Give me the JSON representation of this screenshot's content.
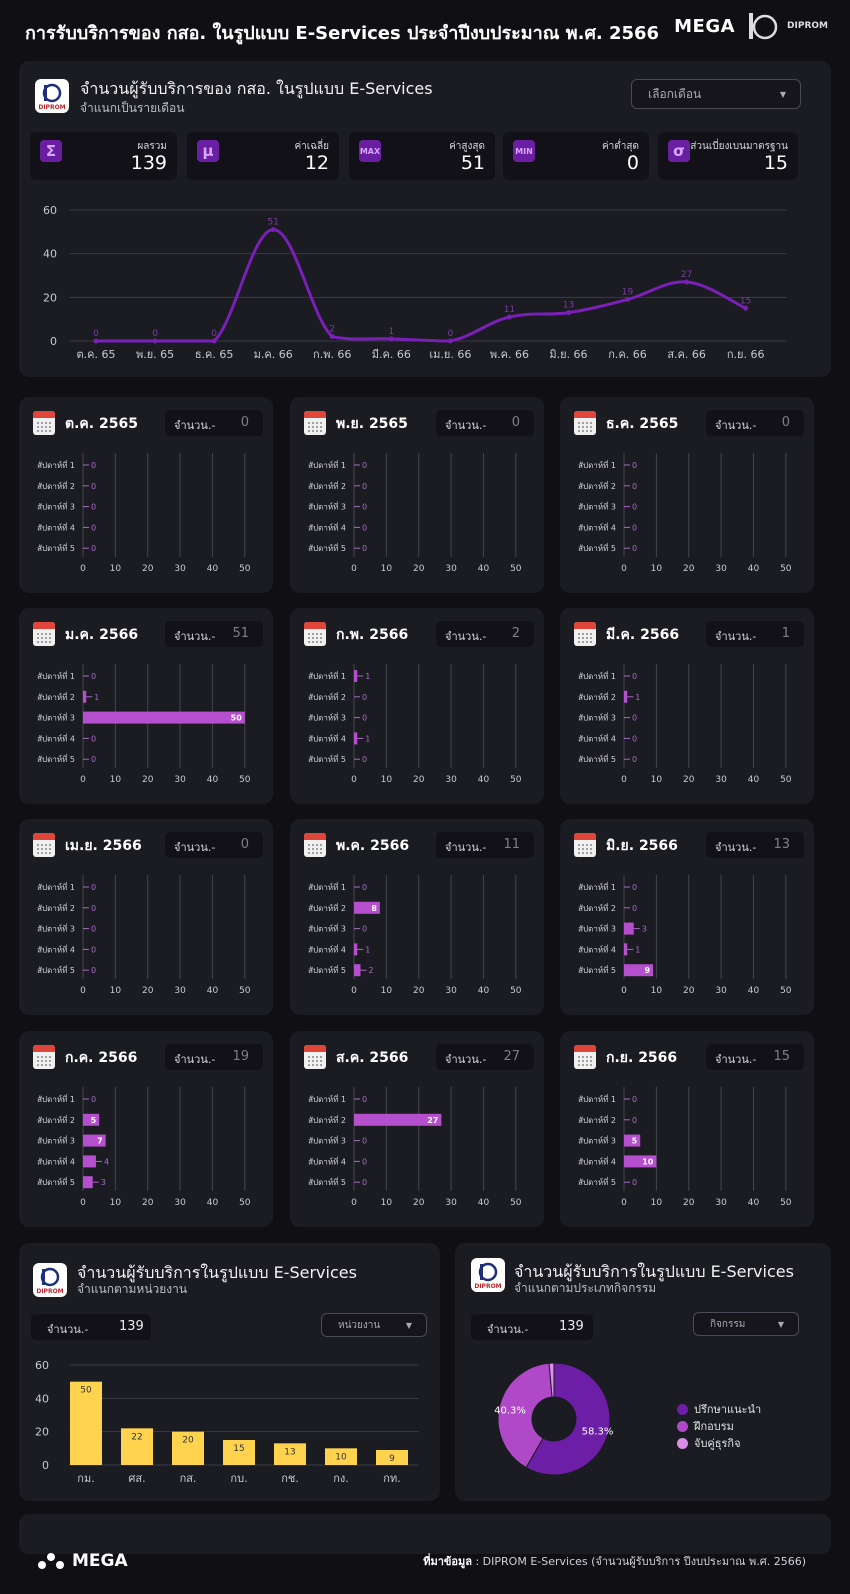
{
  "header": {
    "title": "การรับบริการของ กสอ. ในรูปแบบ E-Services ประจำปีงบประมาณ พ.ศ. 2566",
    "brand_mega": "MEGA",
    "brand_diprom": "DIPROM"
  },
  "logo_text": "DIPROM",
  "monthly": {
    "title": "จำนวนผู้รับบริการของ กสอ. ในรูปแบบ E-Services",
    "subtitle": "จำแนกเป็นรายเดือน",
    "select_placeholder": "เลือกเดือน",
    "stats": [
      {
        "icon": "sigma-icon",
        "glyph": "Σ",
        "label": "ผลรวม",
        "value": "139"
      },
      {
        "icon": "mu-icon",
        "glyph": "μ",
        "label": "ค่าเฉลี่ย",
        "value": "12"
      },
      {
        "icon": "max-icon",
        "glyph": "MAX",
        "label": "ค่าสูงสุด",
        "value": "51"
      },
      {
        "icon": "min-icon",
        "glyph": "MIN",
        "label": "ค่าต่ำสุด",
        "value": "0"
      },
      {
        "icon": "sigma-lower-icon",
        "glyph": "σ",
        "label": "ส่วนเบี่ยงเบนมาตรฐาน",
        "value": "15"
      }
    ]
  },
  "chart_data": [
    {
      "type": "line",
      "categories": [
        "ต.ค. 65",
        "พ.ย. 65",
        "ธ.ค. 65",
        "ม.ค. 66",
        "ก.พ. 66",
        "มี.ค. 66",
        "เม.ย. 66",
        "พ.ค. 66",
        "มิ.ย. 66",
        "ก.ค. 66",
        "ส.ค. 66",
        "ก.ย. 66"
      ],
      "values": [
        0,
        0,
        0,
        51,
        2,
        1,
        0,
        11,
        13,
        19,
        27,
        15
      ],
      "y_ticks": [
        0,
        20,
        40,
        60
      ],
      "ylim": [
        0,
        60
      ],
      "grid": true,
      "color": "#7a1fb8"
    },
    {
      "type": "bar",
      "orientation": "horizontal",
      "categories": [
        "สัปดาห์ที่ 1",
        "สัปดาห์ที่ 2",
        "สัปดาห์ที่ 3",
        "สัปดาห์ที่ 4",
        "สัปดาห์ที่ 5"
      ],
      "x_ticks": [
        0,
        10,
        20,
        30,
        40,
        50
      ],
      "xlim": [
        0,
        55
      ],
      "color": "#b54fce",
      "months": [
        {
          "title": "ต.ค. 2565",
          "count_label": "จำนวน.-",
          "total": "0",
          "values": [
            0,
            0,
            0,
            0,
            0
          ]
        },
        {
          "title": "พ.ย. 2565",
          "count_label": "จำนวน.-",
          "total": "0",
          "values": [
            0,
            0,
            0,
            0,
            0
          ]
        },
        {
          "title": "ธ.ค. 2565",
          "count_label": "จำนวน.-",
          "total": "0",
          "values": [
            0,
            0,
            0,
            0,
            0
          ]
        },
        {
          "title": "ม.ค. 2566",
          "count_label": "จำนวน.-",
          "total": "51",
          "values": [
            0,
            1,
            50,
            0,
            0
          ]
        },
        {
          "title": "ก.พ. 2566",
          "count_label": "จำนวน.-",
          "total": "2",
          "values": [
            1,
            0,
            0,
            1,
            0
          ]
        },
        {
          "title": "มี.ค. 2566",
          "count_label": "จำนวน.-",
          "total": "1",
          "values": [
            0,
            1,
            0,
            0,
            0
          ]
        },
        {
          "title": "เม.ย. 2566",
          "count_label": "จำนวน.-",
          "total": "0",
          "values": [
            0,
            0,
            0,
            0,
            0
          ]
        },
        {
          "title": "พ.ค. 2566",
          "count_label": "จำนวน.-",
          "total": "11",
          "values": [
            0,
            8,
            0,
            1,
            2
          ]
        },
        {
          "title": "มิ.ย. 2566",
          "count_label": "จำนวน.-",
          "total": "13",
          "values": [
            0,
            0,
            3,
            1,
            9
          ]
        },
        {
          "title": "ก.ค. 2566",
          "count_label": "จำนวน.-",
          "total": "19",
          "values": [
            0,
            5,
            7,
            4,
            3
          ]
        },
        {
          "title": "ส.ค. 2566",
          "count_label": "จำนวน.-",
          "total": "27",
          "values": [
            0,
            27,
            0,
            0,
            0
          ]
        },
        {
          "title": "ก.ย. 2566",
          "count_label": "จำนวน.-",
          "total": "15",
          "values": [
            0,
            0,
            5,
            10,
            0
          ]
        }
      ]
    },
    {
      "type": "bar",
      "categories": [
        "กม.",
        "ศส.",
        "กส.",
        "กบ.",
        "กช.",
        "กง.",
        "กท."
      ],
      "values": [
        50,
        22,
        20,
        15,
        13,
        10,
        9
      ],
      "y_ticks": [
        0,
        20,
        40,
        60
      ],
      "ylim": [
        0,
        60
      ],
      "color": "#ffd34d"
    },
    {
      "type": "pie",
      "labels": [
        "ปรึกษาแนะนำ",
        "ฝึกอบรม",
        "จับคู่ธุรกิจ"
      ],
      "values": [
        58.3,
        40.3,
        1.4
      ],
      "data_labels": [
        "58.3%",
        "40.3%",
        ""
      ],
      "colors": [
        "#6c1ea6",
        "#b049c8",
        "#d98ee8"
      ],
      "legend": "right"
    }
  ],
  "by_unit": {
    "title": "จำนวนผู้รับบริการในรูปแบบ E-Services",
    "subtitle": "จำแนกตามหน่วยงาน",
    "count_label": "จำนวน.-",
    "count_value": "139",
    "select_placeholder": "หน่วยงาน"
  },
  "by_activity": {
    "title": "จำนวนผู้รับบริการในรูปแบบ E-Services",
    "subtitle": "จำแนกตามประเภทกิจกรรม",
    "count_label": "จำนวน.-",
    "count_value": "139",
    "select_placeholder": "กิจกรรม"
  },
  "footer": {
    "logo": "MEGA",
    "source_label": "ที่มาข้อมูล",
    "source_text": " : DIPROM E-Services (จำนวนผู้รับบริการ ปีงบประมาณ พ.ศ. 2566)"
  }
}
